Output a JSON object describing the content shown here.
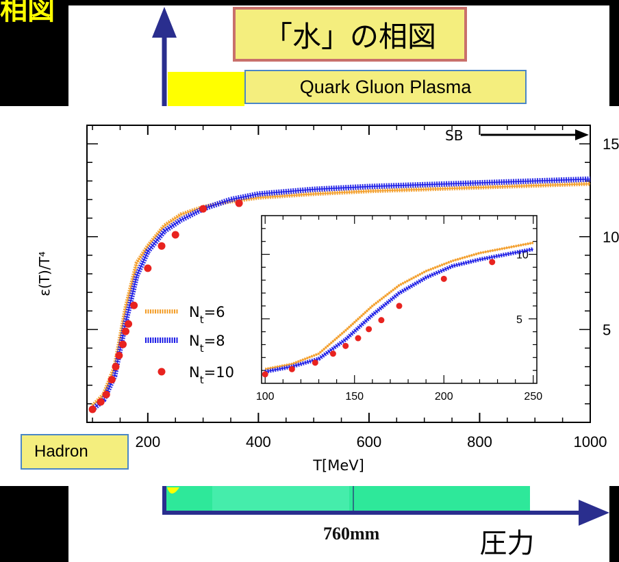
{
  "slide": {
    "corner_fragment": "相図",
    "title": "「水」の相図",
    "qgp_label": "Quark Gluon Plasma",
    "hadron_label": "Hadron",
    "pressure_label": "圧力",
    "pressure_tick": "760mm",
    "colors": {
      "background": "#000000",
      "callout_fill": "#f4ee7e",
      "title_border": "#c9706b",
      "callout_border": "#4a86c6",
      "axis_arrow": "#2a2e8e",
      "phase_green": "#2ee89a",
      "phase_yellow": "#ffff00"
    }
  },
  "chart_data": [
    {
      "type": "line",
      "xlabel": "T[MeV]",
      "ylabel": "ε(T)/T⁴",
      "xlim": [
        90,
        1000
      ],
      "ylim": [
        0,
        16
      ],
      "x_ticks": [
        200,
        400,
        600,
        800,
        1000
      ],
      "right_ticks": [
        "5",
        "10",
        "15"
      ],
      "sb_label": "SB",
      "series": [
        {
          "name": "N_t=6",
          "style": "orange band",
          "x": [
            100,
            120,
            140,
            160,
            180,
            200,
            230,
            260,
            300,
            350,
            400,
            500,
            600,
            700,
            800,
            900,
            1000
          ],
          "y": [
            0.9,
            1.5,
            3.0,
            6.2,
            8.6,
            9.5,
            10.6,
            11.2,
            11.6,
            11.9,
            12.1,
            12.3,
            12.45,
            12.55,
            12.65,
            12.75,
            12.85
          ]
        },
        {
          "name": "N_t=8",
          "style": "blue band",
          "x": [
            100,
            120,
            140,
            160,
            180,
            200,
            230,
            260,
            300,
            350,
            400,
            500,
            600,
            700,
            800,
            900,
            1000
          ],
          "y": [
            0.7,
            1.2,
            2.5,
            5.4,
            7.9,
            9.2,
            10.3,
            10.9,
            11.5,
            12.0,
            12.3,
            12.55,
            12.7,
            12.8,
            12.9,
            13.0,
            13.1
          ]
        },
        {
          "name": "N_t=10",
          "style": "red points",
          "x": [
            100,
            115,
            125,
            135,
            142,
            148,
            155,
            160,
            165,
            175,
            200,
            225,
            250,
            300,
            365
          ],
          "y": [
            0.7,
            1.1,
            1.5,
            2.3,
            3.0,
            3.6,
            4.2,
            4.9,
            5.3,
            6.3,
            8.3,
            9.5,
            10.1,
            11.5,
            11.8
          ]
        }
      ]
    },
    {
      "type": "line",
      "role": "inset",
      "xlim": [
        98,
        252
      ],
      "ylim": [
        0,
        13
      ],
      "x_ticks": [
        100,
        150,
        200,
        250
      ],
      "y_ticks": [
        5,
        10
      ],
      "series": [
        {
          "name": "N_t=6",
          "x": [
            100,
            115,
            130,
            145,
            160,
            175,
            190,
            205,
            220,
            235,
            250
          ],
          "y": [
            1.1,
            1.5,
            2.3,
            4.1,
            6.0,
            7.6,
            8.7,
            9.5,
            10.1,
            10.5,
            10.9
          ]
        },
        {
          "name": "N_t=8",
          "x": [
            100,
            115,
            130,
            145,
            160,
            175,
            190,
            205,
            220,
            235,
            250
          ],
          "y": [
            0.9,
            1.3,
            1.9,
            3.4,
            5.3,
            7.0,
            8.2,
            9.1,
            9.6,
            10.0,
            10.4
          ]
        },
        {
          "name": "N_t=10",
          "x": [
            100,
            115,
            128,
            138,
            145,
            152,
            158,
            165,
            175,
            200,
            227
          ],
          "y": [
            0.7,
            1.1,
            1.6,
            2.3,
            2.9,
            3.5,
            4.2,
            4.9,
            6.0,
            8.1,
            9.4
          ]
        }
      ]
    }
  ]
}
